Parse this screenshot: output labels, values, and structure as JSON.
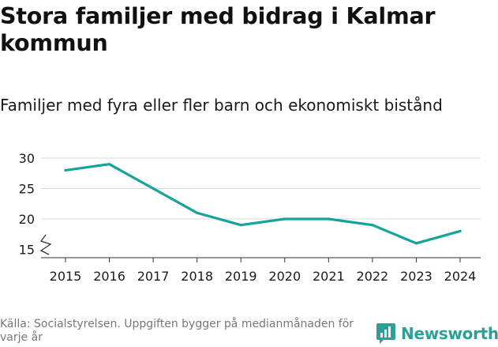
{
  "header": {
    "title": "Stora familjer med bidrag i Kalmar kommun",
    "subtitle": "Familjer med fyra eller fler barn och ekonomiskt bistånd"
  },
  "footer": {
    "source": "Källa: Socialstyrelsen. Uppgiften bygger på medianmånaden för varje år",
    "brand": "Newsworthy"
  },
  "colors": {
    "line": "#16a39b",
    "grid": "#d9d9d9",
    "axis": "#333333",
    "brand": "#2aa198"
  },
  "chart_data": {
    "type": "line",
    "title": "Stora familjer med bidrag i Kalmar kommun",
    "subtitle": "Familjer med fyra eller fler barn och ekonomiskt bistånd",
    "xlabel": "",
    "ylabel": "",
    "x": [
      "2015",
      "2016",
      "2017",
      "2018",
      "2019",
      "2020",
      "2021",
      "2022",
      "2023",
      "2024"
    ],
    "series": [
      {
        "name": "Familjer",
        "values": [
          28,
          29,
          25,
          21,
          19,
          20,
          20,
          19,
          16,
          18
        ]
      }
    ],
    "yticks": [
      15,
      20,
      25,
      30
    ],
    "ylim": [
      14,
      31
    ],
    "axis_break": true,
    "grid": true
  }
}
